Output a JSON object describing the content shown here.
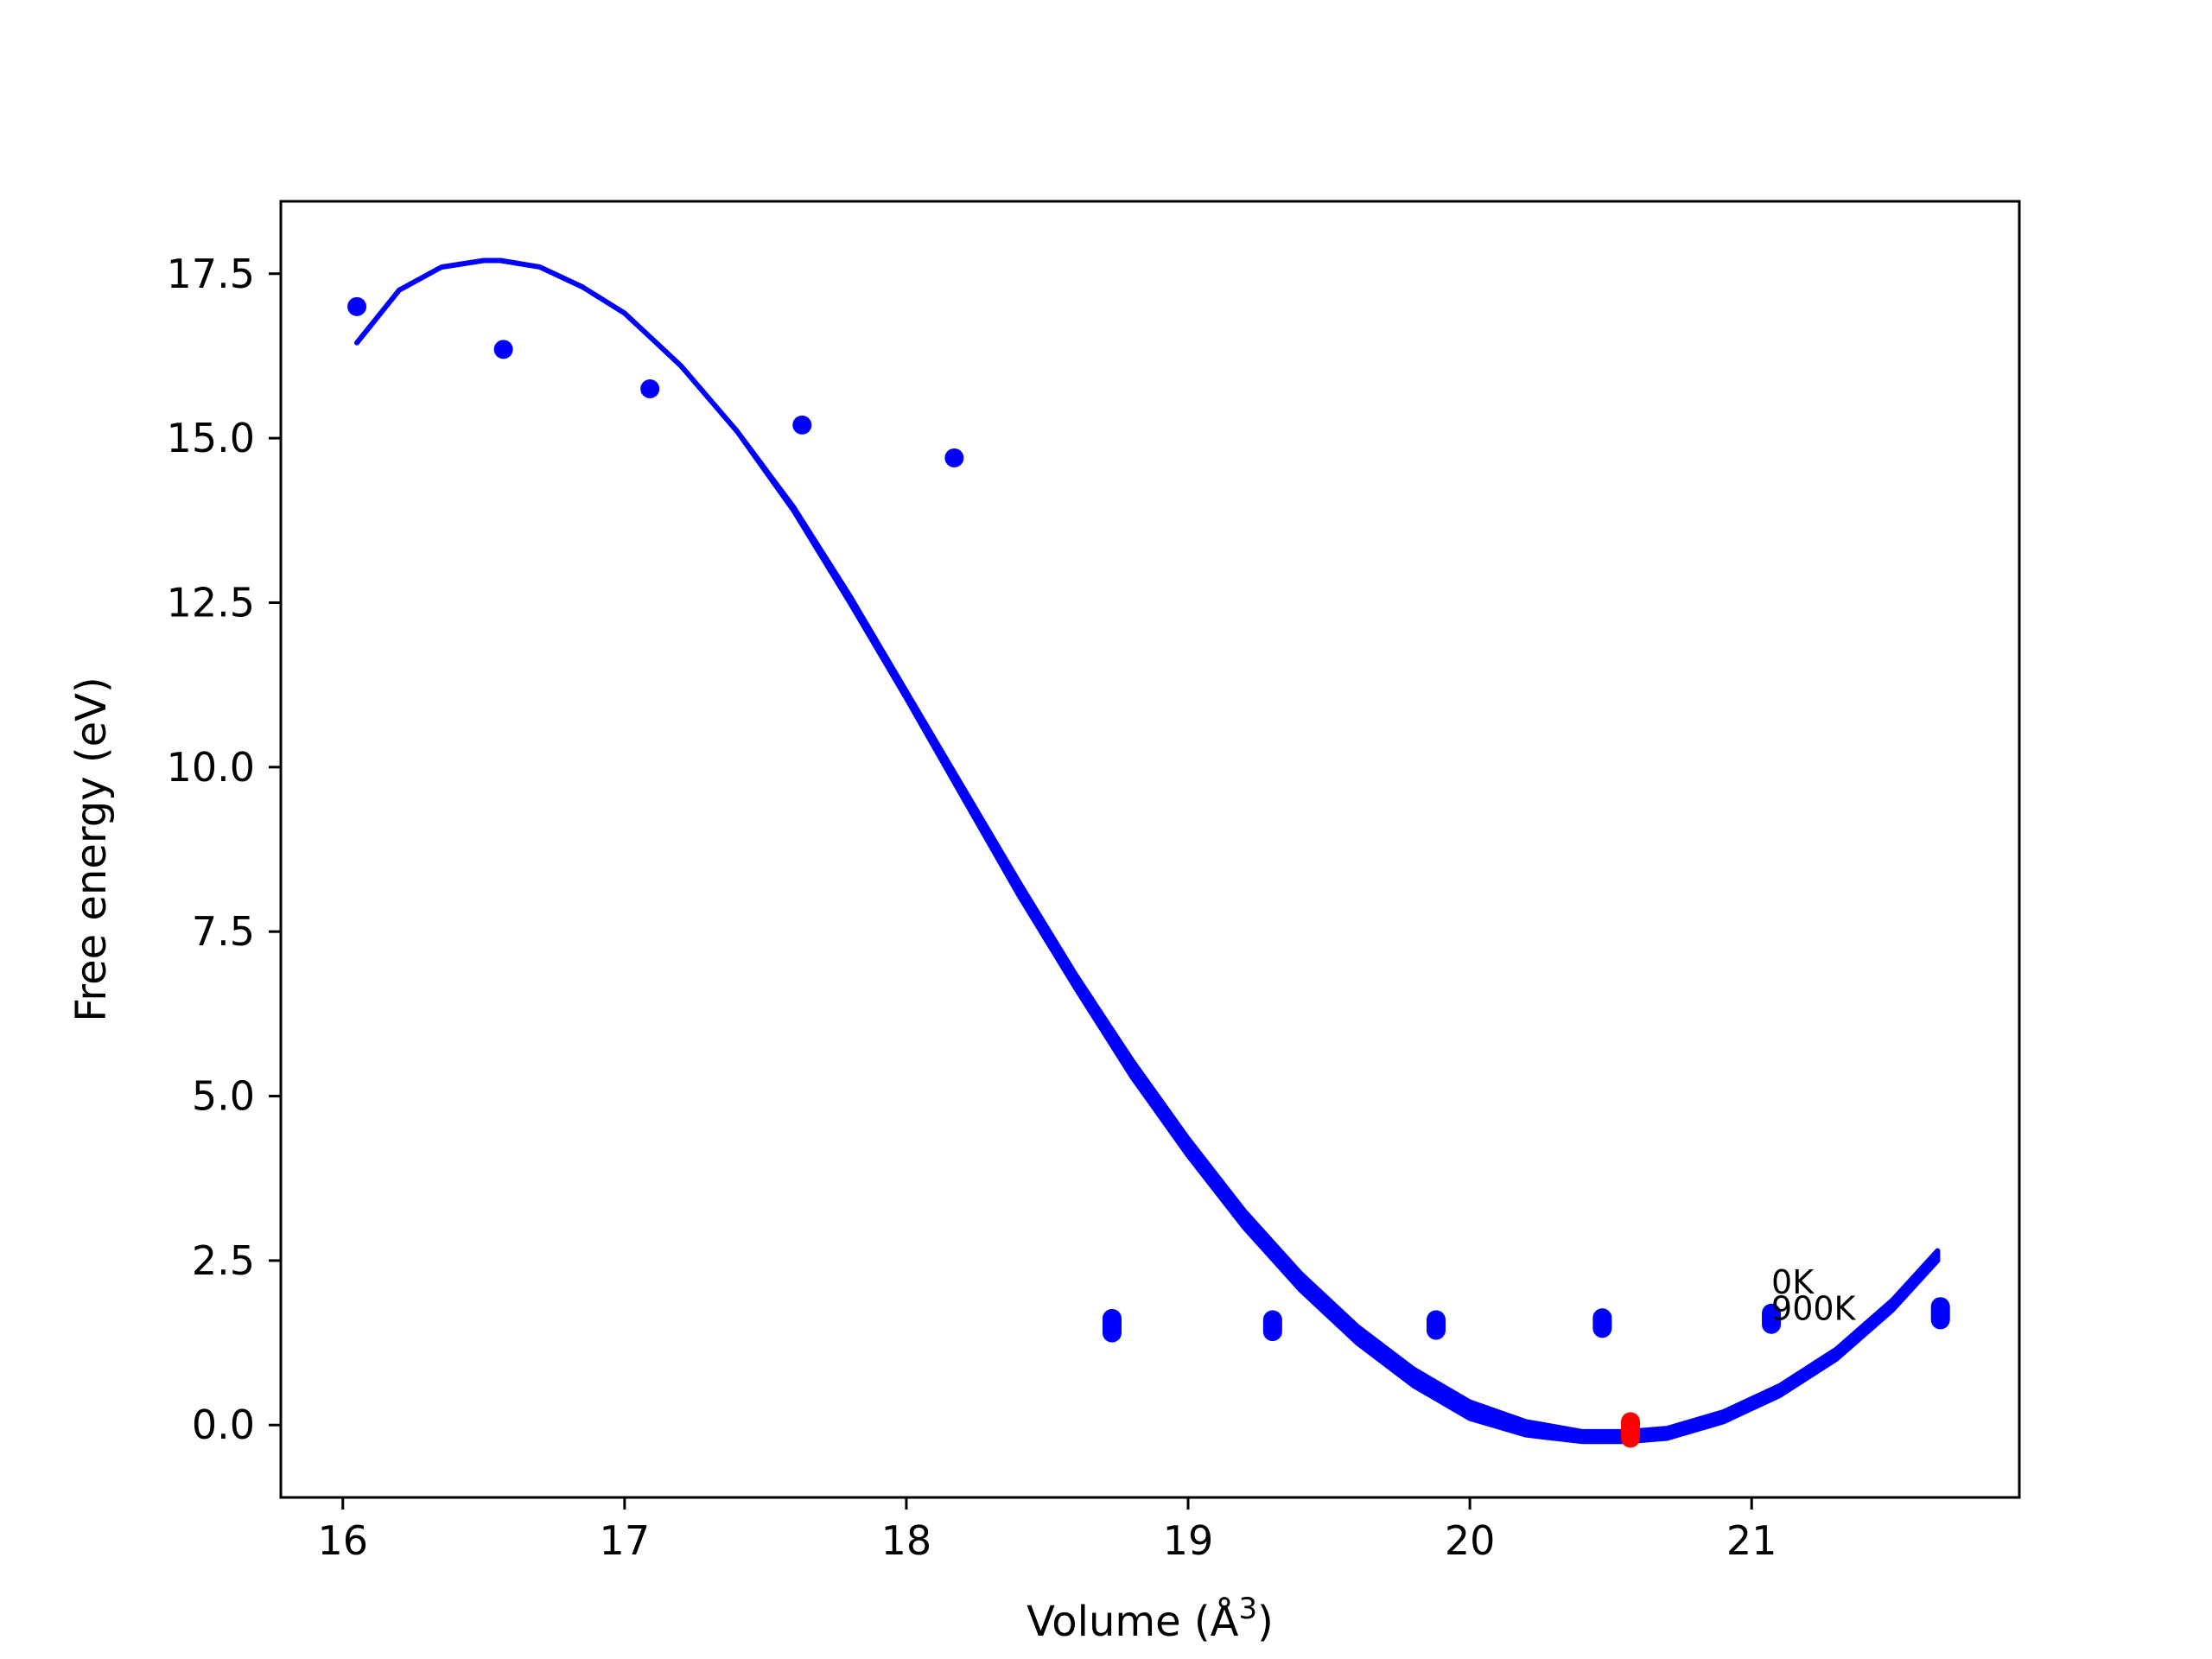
{
  "chart_data": {
    "type": "line",
    "title": "",
    "xlabel": "Volume (Å",
    "xlabel_exponent": "3",
    "xlabel_close": ")",
    "ylabel": "Free energy (eV)",
    "xlim": [
      15.78,
      21.95
    ],
    "ylim": [
      -1.1,
      18.6
    ],
    "xticks": [
      16,
      17,
      18,
      19,
      20,
      21
    ],
    "xtick_labels": [
      "16",
      "17",
      "18",
      "19",
      "20",
      "21"
    ],
    "yticks": [
      0.0,
      2.5,
      5.0,
      7.5,
      10.0,
      12.5,
      15.0,
      17.5
    ],
    "ytick_labels": [
      "0.0",
      "2.5",
      "5.0",
      "7.5",
      "10.0",
      "12.5",
      "15.0",
      "17.5"
    ],
    "grid": false,
    "legend": "none",
    "annotations": [
      {
        "text": "0K",
        "x": 21.07,
        "y": 2.0
      },
      {
        "text": "900K",
        "x": 21.07,
        "y": 1.6
      }
    ],
    "colors": {
      "series": "#0000ff",
      "minimum": "#ff0000",
      "axes": "#000000"
    },
    "series": [
      {
        "kind": "line",
        "x": [
          16.05,
          16.2,
          16.35,
          16.5,
          16.56,
          16.7,
          16.85,
          17.0,
          17.2,
          17.4,
          17.6,
          17.8,
          18.0,
          18.2,
          18.4,
          18.6,
          18.8,
          19.0,
          19.2,
          19.4,
          19.6,
          19.8,
          20.0,
          20.2,
          20.4,
          20.56,
          20.7,
          20.9,
          21.1,
          21.3,
          21.5,
          21.66
        ],
        "y_top": [
          16.45,
          17.25,
          17.6,
          17.7,
          17.7,
          17.6,
          17.3,
          16.9,
          16.1,
          15.1,
          13.95,
          12.6,
          11.15,
          9.7,
          8.25,
          6.85,
          5.55,
          4.35,
          3.25,
          2.3,
          1.5,
          0.85,
          0.35,
          0.05,
          -0.1,
          -0.1,
          -0.05,
          0.2,
          0.6,
          1.15,
          1.9,
          2.65
        ],
        "y_bottom": [
          16.45,
          17.25,
          17.6,
          17.7,
          17.7,
          17.6,
          17.3,
          16.9,
          16.1,
          15.1,
          13.9,
          12.5,
          11.05,
          9.55,
          8.05,
          6.65,
          5.3,
          4.1,
          3.0,
          2.05,
          1.25,
          0.6,
          0.1,
          -0.15,
          -0.25,
          -0.25,
          -0.2,
          0.05,
          0.45,
          1.0,
          1.75,
          2.5
        ]
      },
      {
        "kind": "scatter",
        "x": [
          16.05,
          16.57,
          17.09,
          17.63,
          18.17
        ],
        "y": [
          17.0,
          16.35,
          15.75,
          15.2,
          14.7
        ]
      },
      {
        "kind": "scatter-range",
        "x": [
          18.73,
          19.3,
          19.88,
          20.47,
          21.07,
          21.67
        ],
        "y_low": [
          1.4,
          1.42,
          1.44,
          1.47,
          1.53,
          1.6
        ],
        "y_high": [
          1.62,
          1.6,
          1.6,
          1.63,
          1.7,
          1.8
        ]
      },
      {
        "kind": "minimum",
        "x": [
          20.57
        ],
        "y_low": [
          -0.2
        ],
        "y_high": [
          0.05
        ]
      }
    ]
  }
}
